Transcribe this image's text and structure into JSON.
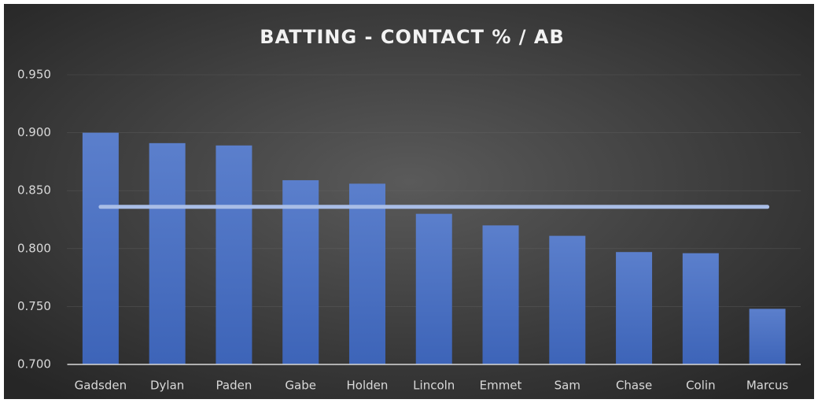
{
  "chart_data": {
    "type": "bar",
    "title": "BATTING - CONTACT % / AB",
    "categories": [
      "Gadsden",
      "Dylan",
      "Paden",
      "Gabe",
      "Holden",
      "Lincoln",
      "Emmet",
      "Sam",
      "Chase",
      "Colin",
      "Marcus"
    ],
    "series": [
      {
        "type": "bar",
        "color": "#4a72c4",
        "values": [
          0.9,
          0.891,
          0.889,
          0.859,
          0.856,
          0.83,
          0.82,
          0.811,
          0.797,
          0.796,
          0.748
        ]
      },
      {
        "type": "line",
        "color": "#a9bde6",
        "values": [
          0.836,
          0.836,
          0.836,
          0.836,
          0.836,
          0.836,
          0.836,
          0.836,
          0.836,
          0.836,
          0.836
        ]
      }
    ],
    "ylim": [
      0.7,
      0.95
    ],
    "yticks": [
      {
        "value": 0.7,
        "label": "0.700"
      },
      {
        "value": 0.75,
        "label": "0.750"
      },
      {
        "value": 0.8,
        "label": "0.800"
      },
      {
        "value": 0.85,
        "label": "0.850"
      },
      {
        "value": 0.9,
        "label": "0.900"
      },
      {
        "value": 0.95,
        "label": "0.950"
      }
    ],
    "grid": true
  }
}
